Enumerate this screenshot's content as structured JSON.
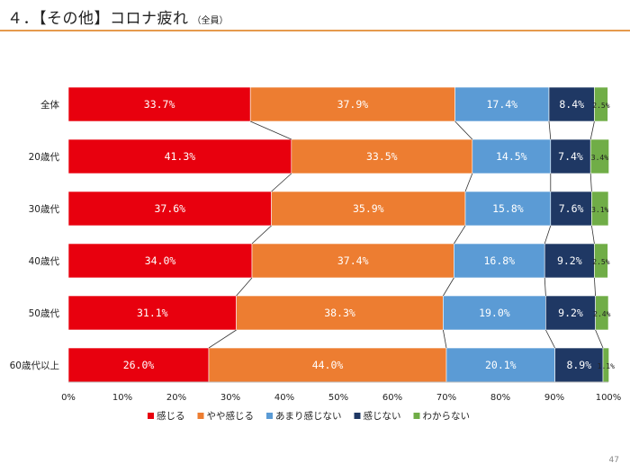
{
  "header": {
    "title": "４．【その他】コロナ疲れ",
    "subtitle": "（全員）"
  },
  "page_number": "47",
  "chart_data": {
    "type": "bar",
    "orientation": "horizontal",
    "stacked": true,
    "normalized": true,
    "categories": [
      "全体",
      "20歳代",
      "30歳代",
      "40歳代",
      "50歳代",
      "60歳代以上"
    ],
    "series": [
      {
        "name": "感じる",
        "color": "#e8000e",
        "values": [
          33.7,
          41.3,
          37.6,
          34.0,
          31.1,
          26.0
        ],
        "labels": [
          "33.7%",
          "41.3%",
          "37.6%",
          "34.0%",
          "31.1%",
          "26.0%"
        ]
      },
      {
        "name": "やや感じる",
        "color": "#ed7d31",
        "values": [
          37.9,
          33.5,
          35.9,
          37.4,
          38.3,
          44.0
        ],
        "labels": [
          "37.9%",
          "33.5%",
          "35.9%",
          "37.4%",
          "38.3%",
          "44.0%"
        ]
      },
      {
        "name": "あまり感じない",
        "color": "#5b9bd5",
        "values": [
          17.4,
          14.5,
          15.8,
          16.8,
          19.0,
          20.1
        ],
        "labels": [
          "17.4%",
          "14.5%",
          "15.8%",
          "16.8%",
          "19.0%",
          "20.1%"
        ]
      },
      {
        "name": "感じない",
        "color": "#1f3864",
        "values": [
          8.4,
          7.4,
          7.6,
          9.2,
          9.2,
          8.9
        ],
        "labels": [
          "8.4%",
          "7.4%",
          "7.6%",
          "9.2%",
          "9.2%",
          "8.9%"
        ]
      },
      {
        "name": "わからない",
        "color": "#70ad47",
        "values": [
          2.5,
          3.4,
          3.1,
          2.5,
          2.4,
          1.1
        ],
        "labels": [
          "2.5%",
          "3.4%",
          "3.1%",
          "2.5%",
          "2.4%",
          "1.1%"
        ]
      }
    ],
    "x_ticks": [
      "0%",
      "10%",
      "20%",
      "30%",
      "40%",
      "50%",
      "60%",
      "70%",
      "80%",
      "90%",
      "100%"
    ],
    "xlim": [
      0,
      100
    ],
    "series_lines": true,
    "legend_position": "bottom",
    "grid": false
  }
}
